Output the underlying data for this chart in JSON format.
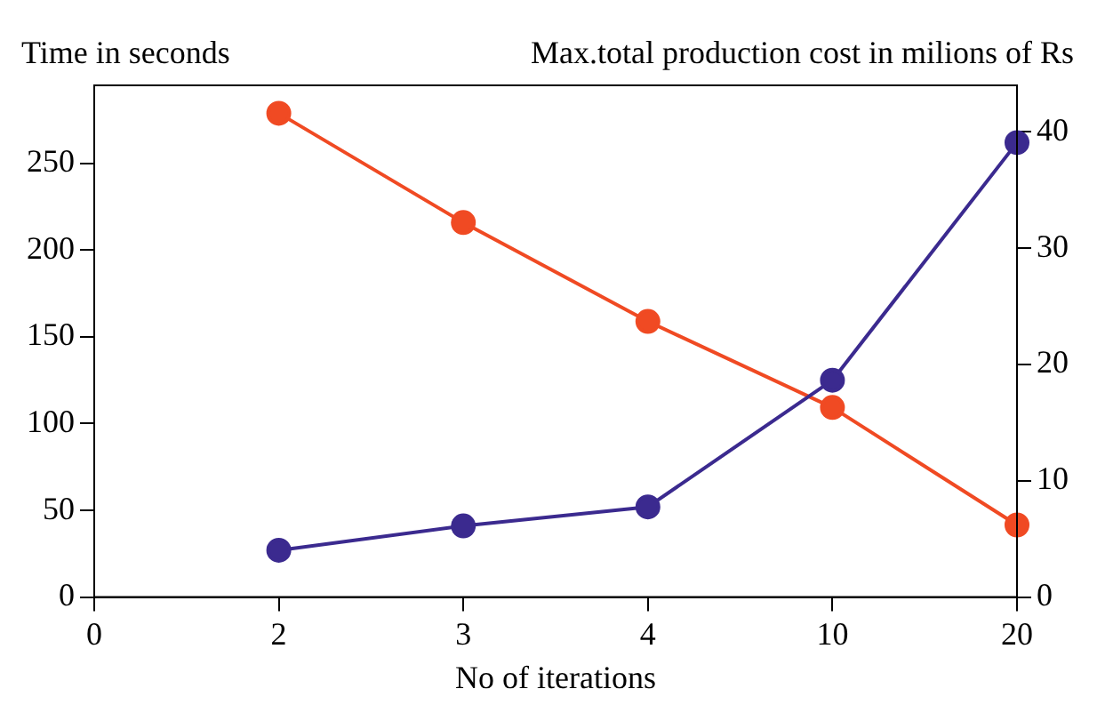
{
  "chart_data": {
    "type": "line",
    "xlabel": "No of iterations",
    "ylabel": "Time in seconds",
    "y2label": "Max.total production cost in milions of Rs",
    "categories": [
      "0",
      "2",
      "3",
      "4",
      "10",
      "20"
    ],
    "series": [
      {
        "color": "#3b2a8f",
        "values": [
          null,
          27,
          41,
          52,
          125,
          262
        ]
      },
      {
        "color": "#f04a23",
        "axis": "y2",
        "values": [
          null,
          41.6,
          32.2,
          23.7,
          16.3,
          6.2
        ]
      }
    ],
    "ylim": [
      0,
      295
    ],
    "yticks": [
      0,
      50,
      100,
      150,
      200,
      250
    ],
    "y2lim": [
      0,
      44
    ],
    "y2ticks": [
      0,
      10,
      20,
      30,
      40
    ],
    "marker": "circle"
  }
}
